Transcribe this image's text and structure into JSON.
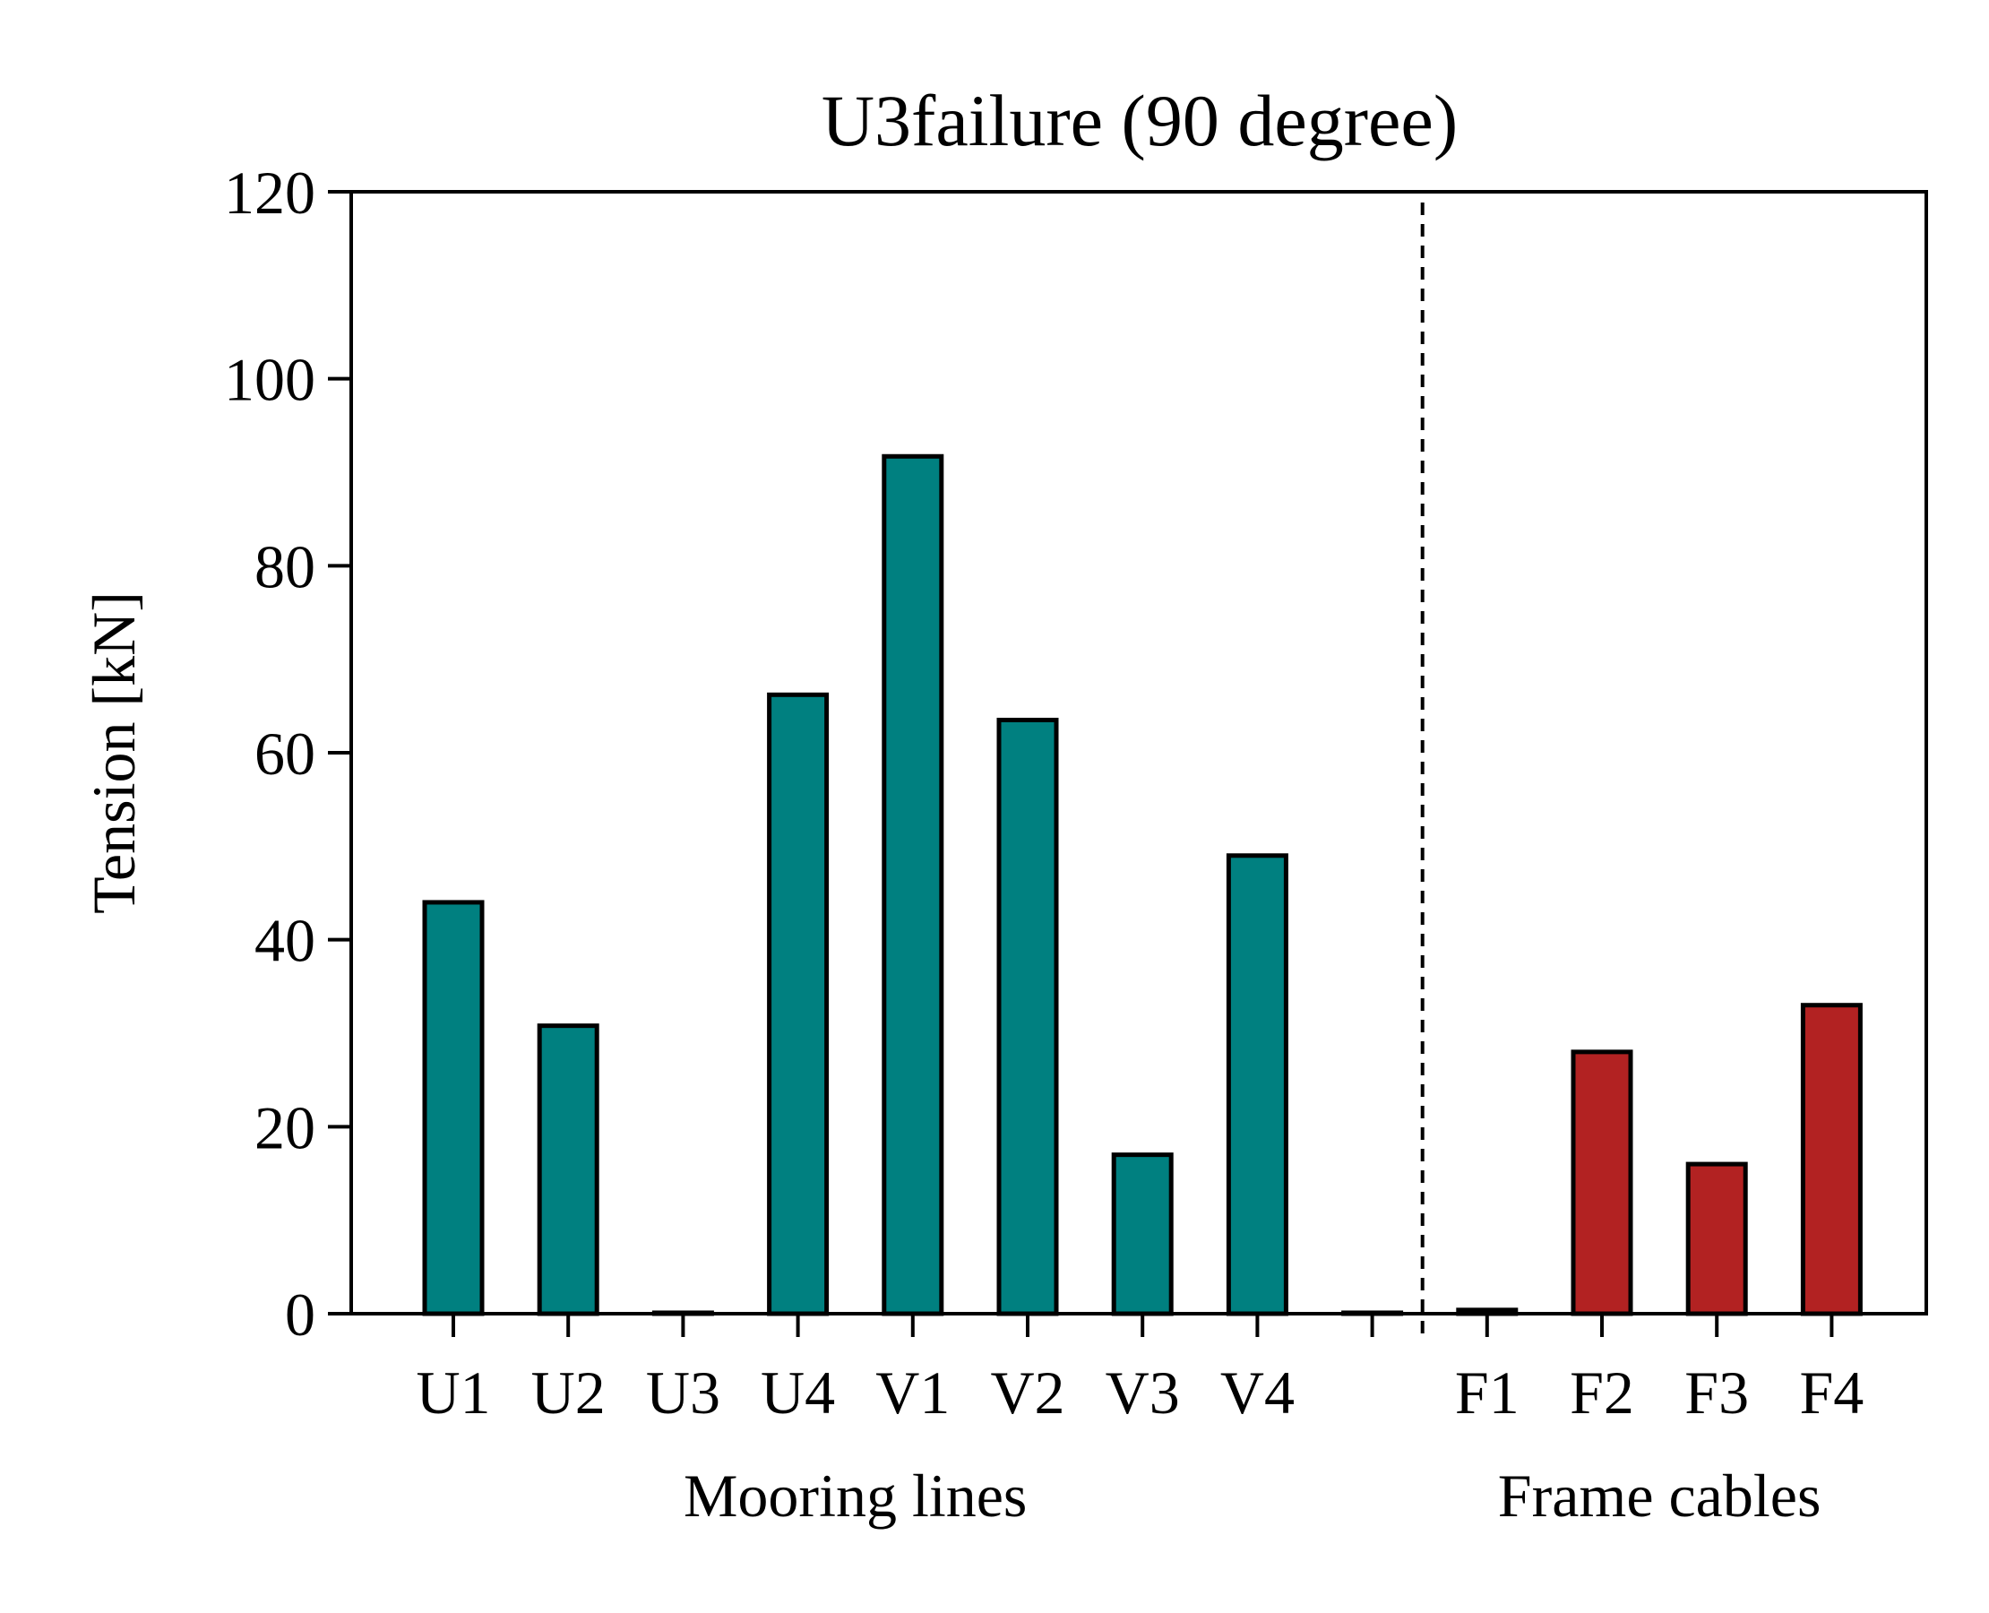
{
  "chart_data": {
    "type": "bar",
    "title": "U3failure (90 degree)",
    "ylabel": "Tension [kN]",
    "ylim": [
      0,
      120
    ],
    "yticks": [
      0,
      20,
      40,
      60,
      80,
      100,
      120
    ],
    "grid": false,
    "categories": [
      "U1",
      "U2",
      "U3",
      "U4",
      "V1",
      "V2",
      "V3",
      "V4",
      "",
      "F1",
      "F2",
      "F3",
      "F4"
    ],
    "values": [
      44,
      30.8,
      0.1,
      66.2,
      91.7,
      63.5,
      17,
      49,
      0.1,
      0.4,
      28,
      16,
      33
    ],
    "bar_groups": [
      {
        "label": "Mooring lines",
        "color": "#008080",
        "indices": [
          0,
          1,
          2,
          3,
          4,
          5,
          6,
          7,
          8
        ]
      },
      {
        "label": "Frame cables",
        "color": "#B22222",
        "indices": [
          9,
          10,
          11,
          12
        ]
      }
    ],
    "separator_after_index": 8,
    "separator_style": "dashed"
  }
}
